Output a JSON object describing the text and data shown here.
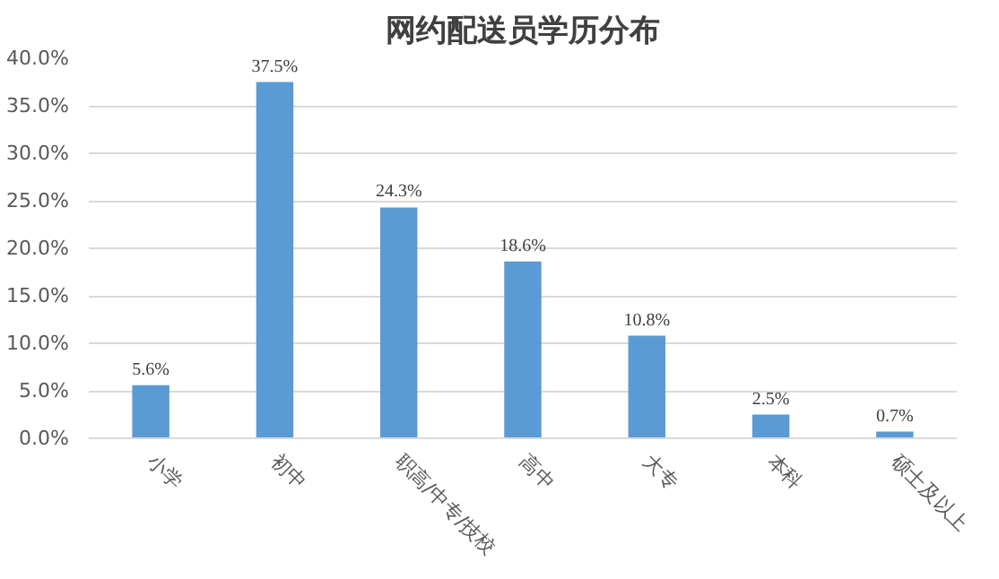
{
  "chart_data": {
    "type": "bar",
    "title": "网约配送员学历分布",
    "categories": [
      "小学",
      "初中",
      "职高/中专/技校",
      "高中",
      "大专",
      "本科",
      "硕士及以上"
    ],
    "values": [
      5.6,
      37.5,
      24.3,
      18.6,
      10.8,
      2.5,
      0.7
    ],
    "value_labels": [
      "5.6%",
      "37.5%",
      "24.3%",
      "18.6%",
      "10.8%",
      "2.5%",
      "0.7%"
    ],
    "color": "#5b9bd5",
    "ylim": [
      0,
      40
    ],
    "yticks": [
      {
        "value": 0,
        "label": "0.0%"
      },
      {
        "value": 5,
        "label": "5.0%"
      },
      {
        "value": 10,
        "label": "10.0%"
      },
      {
        "value": 15,
        "label": "15.0%"
      },
      {
        "value": 20,
        "label": "20.0%"
      },
      {
        "value": 25,
        "label": "25.0%"
      },
      {
        "value": 30,
        "label": "30.0%"
      },
      {
        "value": 35,
        "label": "35.0%"
      },
      {
        "value": 40,
        "label": "40.0%"
      }
    ],
    "grid": "y"
  }
}
